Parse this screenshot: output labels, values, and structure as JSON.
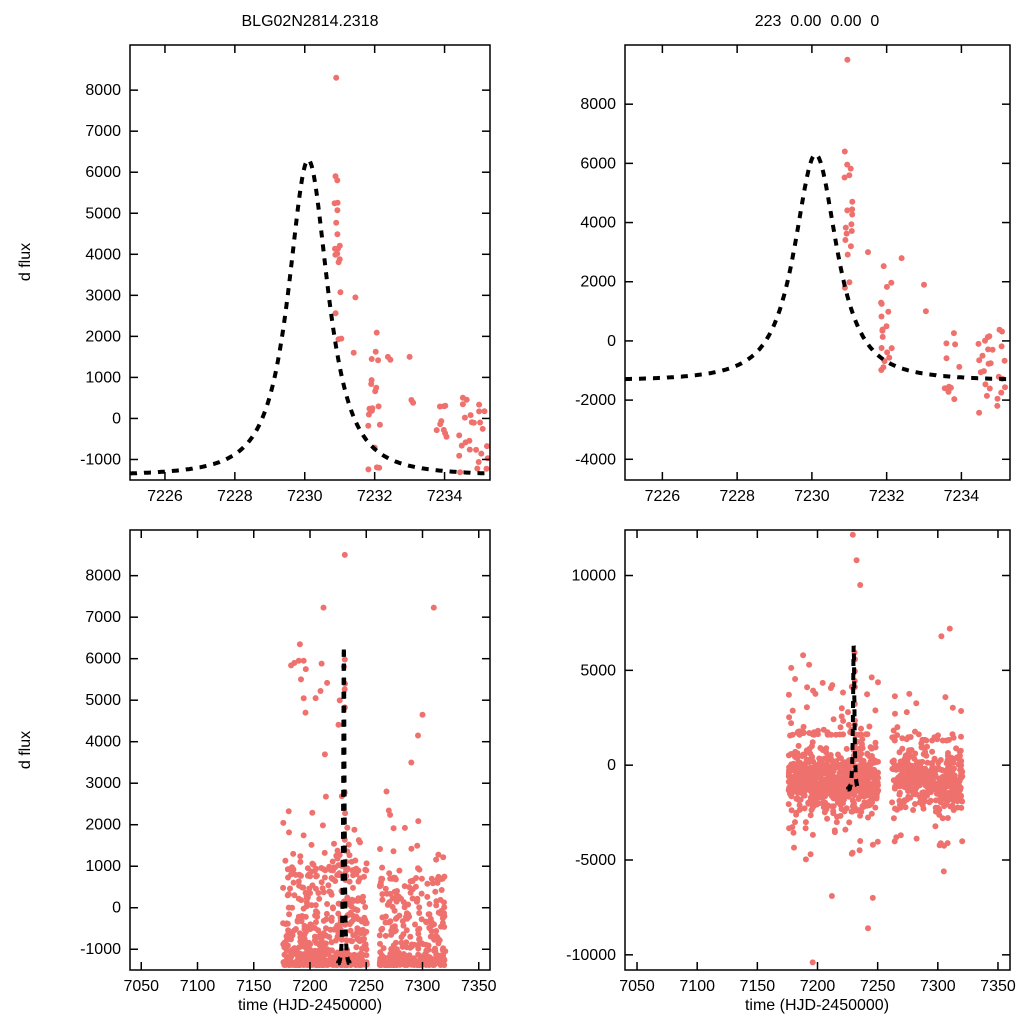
{
  "colors": {
    "background": "#ffffff",
    "point": "#ef716d",
    "model": "#000000",
    "axis": "#000000"
  },
  "chart_data": [
    {
      "id": "top-left",
      "type": "scatter",
      "title": "BLG02N2814.2318",
      "xlabel": "",
      "ylabel": "d flux",
      "xlim": [
        7225,
        7235.3
      ],
      "ylim": [
        -1500,
        9100
      ],
      "xticks": [
        7226,
        7228,
        7230,
        7232,
        7234
      ],
      "yticks": [
        -1000,
        0,
        1000,
        2000,
        3000,
        4000,
        5000,
        6000,
        7000,
        8000
      ],
      "grid": false,
      "model": {
        "t0": 7230.1,
        "width": 0.8,
        "power": 1.3,
        "baseline": -1400,
        "peak": 6300,
        "trange": [
          7225,
          7235.3
        ]
      },
      "clusters": [
        {
          "trange": [
            7230.85,
            7231.05
          ],
          "frange": [
            1250,
            6000
          ],
          "n": 16,
          "dist": "uniform",
          "seed": 11
        },
        {
          "trange": [
            7231.8,
            7232.15
          ],
          "frange": [
            -1250,
            2350
          ],
          "n": 20,
          "dist": "uniform",
          "seed": 12
        },
        {
          "trange": [
            7233.75,
            7234.1
          ],
          "frange": [
            -500,
            350
          ],
          "n": 9,
          "dist": "uniform",
          "seed": 14
        },
        {
          "trange": [
            7234.4,
            7235.25
          ],
          "frange": [
            -1350,
            550
          ],
          "n": 26,
          "dist": "uniform",
          "seed": 15
        }
      ],
      "points": [
        [
          7230.9,
          8300
        ],
        [
          7230.88,
          5900
        ],
        [
          7230.93,
          5800
        ],
        [
          7231.45,
          2950
        ],
        [
          7231.4,
          1600
        ],
        [
          7232.38,
          1500
        ],
        [
          7232.45,
          1430
        ],
        [
          7233.0,
          1500
        ],
        [
          7233.05,
          450
        ],
        [
          7233.1,
          380
        ]
      ]
    },
    {
      "id": "top-right",
      "type": "scatter",
      "title": "223  0.00  0.00  0",
      "xlabel": "",
      "ylabel": "",
      "xlim": [
        7225,
        7235.3
      ],
      "ylim": [
        -4700,
        10000
      ],
      "xticks": [
        7226,
        7228,
        7230,
        7232,
        7234
      ],
      "yticks": [
        -4000,
        -2000,
        0,
        2000,
        4000,
        6000,
        8000
      ],
      "grid": false,
      "model": {
        "t0": 7230.1,
        "width": 0.8,
        "power": 1.3,
        "baseline": -1350,
        "peak": 6300,
        "trange": [
          7225,
          7235.3
        ]
      },
      "clusters": [
        {
          "trange": [
            7230.85,
            7231.1
          ],
          "frange": [
            1500,
            6500
          ],
          "n": 16,
          "dist": "uniform",
          "seed": 21
        },
        {
          "trange": [
            7231.85,
            7232.2
          ],
          "frange": [
            -1600,
            3000
          ],
          "n": 18,
          "dist": "uniform",
          "seed": 22
        },
        {
          "trange": [
            7233.55,
            7234.1
          ],
          "frange": [
            -2100,
            300
          ],
          "n": 10,
          "dist": "uniform",
          "seed": 23
        },
        {
          "trange": [
            7234.4,
            7235.25
          ],
          "frange": [
            -2800,
            400
          ],
          "n": 26,
          "dist": "uniform",
          "seed": 24
        }
      ],
      "points": [
        [
          7230.95,
          9500
        ],
        [
          7230.88,
          6400
        ],
        [
          7231.0,
          5600
        ],
        [
          7231.5,
          3000
        ],
        [
          7232.4,
          2800
        ],
        [
          7233.0,
          1900
        ],
        [
          7233.05,
          1000
        ]
      ]
    },
    {
      "id": "bottom-left",
      "type": "scatter",
      "title": "",
      "xlabel": "time (HJD-2450000)",
      "ylabel": "d flux",
      "xlim": [
        7040,
        7360
      ],
      "ylim": [
        -1500,
        9100
      ],
      "xticks": [
        7050,
        7100,
        7150,
        7200,
        7250,
        7300,
        7350
      ],
      "yticks": [
        -1000,
        0,
        1000,
        2000,
        3000,
        4000,
        5000,
        6000,
        7000,
        8000
      ],
      "grid": false,
      "model": {
        "t0": 7230.1,
        "width": 0.8,
        "power": 1.3,
        "baseline": -1400,
        "peak": 6300,
        "trange": [
          7225,
          7235.3
        ]
      },
      "clusters": [
        {
          "trange": [
            7176,
            7251
          ],
          "frange": [
            -1380,
            900
          ],
          "n": 520,
          "dist": "pow3low",
          "nightly": true,
          "seed": 31
        },
        {
          "trange": [
            7176,
            7251
          ],
          "frange": [
            900,
            3300
          ],
          "n": 60,
          "dist": "pow3low",
          "nightly": true,
          "seed": 32
        },
        {
          "trange": [
            7183,
            7232
          ],
          "frange": [
            3300,
            6400
          ],
          "n": 12,
          "dist": "uniform",
          "nightly": true,
          "seed": 33
        },
        {
          "trange": [
            7262,
            7321
          ],
          "frange": [
            -1380,
            700
          ],
          "n": 330,
          "dist": "pow3low",
          "nightly": true,
          "seed": 34
        },
        {
          "trange": [
            7262,
            7321
          ],
          "frange": [
            700,
            2600
          ],
          "n": 30,
          "dist": "pow3low",
          "nightly": true,
          "seed": 35
        },
        {
          "trange": [
            7230.8,
            7231.2
          ],
          "frange": [
            1000,
            6000
          ],
          "n": 8,
          "dist": "uniform",
          "seed": 36
        }
      ],
      "points": [
        [
          7230.9,
          8500
        ],
        [
          7212,
          7230
        ],
        [
          7310,
          7230
        ],
        [
          7300,
          4650
        ],
        [
          7296,
          4150
        ],
        [
          7290,
          3500
        ],
        [
          7268,
          2800
        ],
        [
          7205,
          5050
        ],
        [
          7191,
          6350
        ],
        [
          7190,
          5950
        ],
        [
          7192,
          5500
        ],
        [
          7196,
          4700
        ]
      ]
    },
    {
      "id": "bottom-right",
      "type": "scatter",
      "title": "",
      "xlabel": "time (HJD-2450000)",
      "ylabel": "",
      "xlim": [
        7040,
        7360
      ],
      "ylim": [
        -10800,
        12400
      ],
      "xticks": [
        7050,
        7100,
        7150,
        7200,
        7250,
        7300,
        7350
      ],
      "yticks": [
        -10000,
        -5000,
        0,
        5000,
        10000
      ],
      "grid": false,
      "model": {
        "t0": 7230.1,
        "width": 0.8,
        "power": 1.3,
        "baseline": -1350,
        "peak": 6300,
        "trange": [
          7225,
          7233.5
        ]
      },
      "clusters": [
        {
          "trange": [
            7176,
            7251
          ],
          "dist": "gauss",
          "mean": -800,
          "sd": 850,
          "clip": [
            -3000,
            1600
          ],
          "n": 650,
          "nightly": true,
          "seed": 41
        },
        {
          "trange": [
            7176,
            7251
          ],
          "frange": [
            1600,
            5200
          ],
          "n": 60,
          "dist": "pow3low",
          "nightly": true,
          "seed": 42
        },
        {
          "trange": [
            7176,
            7251
          ],
          "frange": [
            -5200,
            -3000
          ],
          "n": 18,
          "dist": "uniform",
          "nightly": true,
          "seed": 43
        },
        {
          "trange": [
            7262,
            7321
          ],
          "dist": "gauss",
          "mean": -900,
          "sd": 750,
          "clip": [
            -2800,
            1300
          ],
          "n": 380,
          "nightly": true,
          "seed": 44
        },
        {
          "trange": [
            7262,
            7321
          ],
          "frange": [
            1300,
            4200
          ],
          "n": 35,
          "dist": "pow3low",
          "nightly": true,
          "seed": 45
        },
        {
          "trange": [
            7262,
            7321
          ],
          "frange": [
            -4600,
            -2800
          ],
          "n": 10,
          "dist": "uniform",
          "nightly": true,
          "seed": 46
        },
        {
          "trange": [
            7230.8,
            7231.3
          ],
          "frange": [
            2000,
            6500
          ],
          "n": 8,
          "dist": "uniform",
          "seed": 47
        }
      ],
      "points": [
        [
          7229.3,
          12150
        ],
        [
          7232.5,
          10800
        ],
        [
          7235.5,
          9500
        ],
        [
          7310,
          7200
        ],
        [
          7303,
          6800
        ],
        [
          7188,
          5800
        ],
        [
          7193,
          5300
        ],
        [
          7196,
          -10400
        ],
        [
          7242,
          -8600
        ],
        [
          7246,
          -7000
        ],
        [
          7212,
          -6900
        ],
        [
          7305,
          -5600
        ]
      ]
    }
  ]
}
